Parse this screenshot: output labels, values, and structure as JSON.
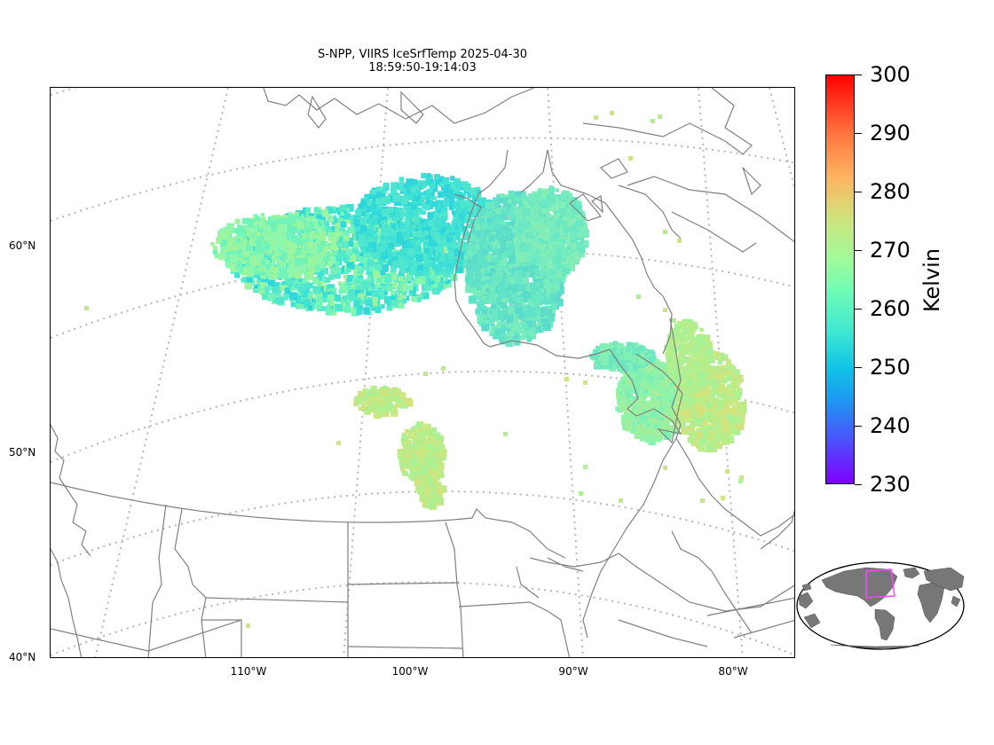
{
  "title": {
    "line1": "S-NPP, VIIRS IceSrfTemp 2025-04-30",
    "line2": "18:59:50-19:14:03"
  },
  "lat_labels": [
    "60°N",
    "50°N",
    "40°N"
  ],
  "lon_labels": [
    "110°W",
    "100°W",
    "90°W",
    "80°W"
  ],
  "colorbar": {
    "title": "Kelvin",
    "ticks": [
      "300",
      "290",
      "280",
      "270",
      "260",
      "250",
      "240",
      "230"
    ],
    "range": [
      230,
      300
    ],
    "colormap": "rainbow"
  },
  "colors": {
    "coastline": "#808080",
    "graticule": "#b5b5b5",
    "inset_land": "#777777",
    "inset_box": "#ff44ff"
  }
}
